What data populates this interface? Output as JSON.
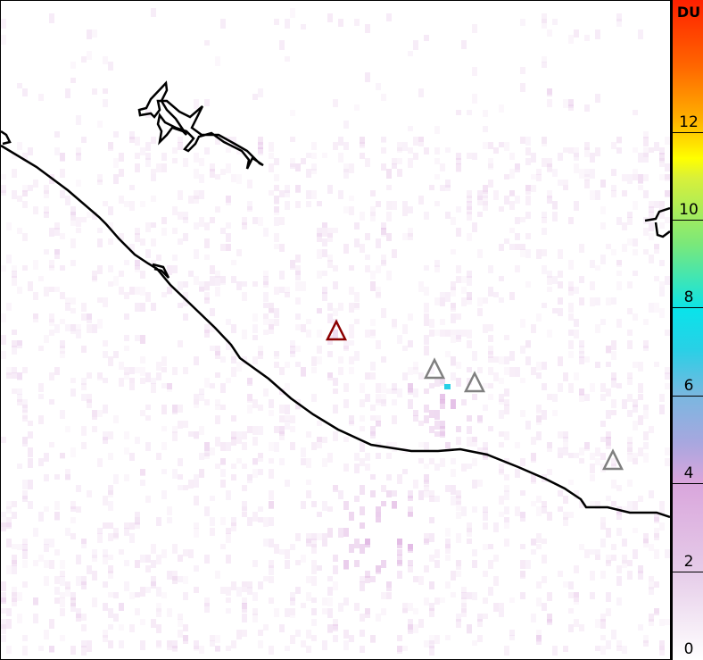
{
  "colorbar": {
    "unit": "DU",
    "min": 0,
    "max": 15,
    "ticks": [
      "0",
      "2",
      "4",
      "6",
      "8",
      "10",
      "12"
    ]
  },
  "markers": [
    {
      "type": "triangle",
      "color": "#8b0000",
      "label": ""
    },
    {
      "type": "triangle",
      "color": "#808080",
      "label": ""
    },
    {
      "type": "triangle",
      "color": "#808080",
      "label": ""
    },
    {
      "type": "triangle",
      "color": "#808080",
      "label": ""
    }
  ],
  "colors": {
    "coastline": "#000000",
    "plume": "#d9a5dc",
    "hotspot": "#29d0e6"
  }
}
